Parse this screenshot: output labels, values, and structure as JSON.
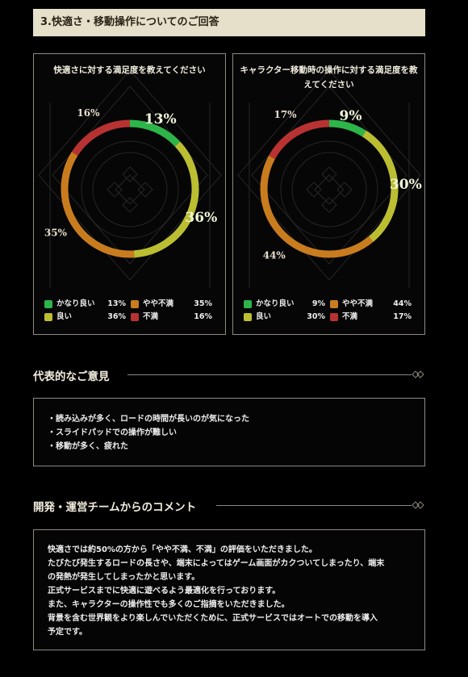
{
  "section_title": "3.快適さ・移動操作についてのご回答",
  "chart_data": [
    {
      "type": "pie",
      "title": "快適さに対する満足度を教えてください",
      "slices": [
        {
          "label": "かなり良い",
          "value": 13,
          "display": "13%",
          "color": "#2db54a"
        },
        {
          "label": "良い",
          "value": 36,
          "display": "36%",
          "color": "#bcbe32"
        },
        {
          "label": "やや不満",
          "value": 35,
          "display": "35%",
          "color": "#c97c1e"
        },
        {
          "label": "不満",
          "value": 16,
          "display": "16%",
          "color": "#b83232"
        }
      ]
    },
    {
      "type": "pie",
      "title": "キャラクター移動時の操作に対する満足度を教えてください",
      "slices": [
        {
          "label": "かなり良い",
          "value": 9,
          "display": "9%",
          "color": "#2db54a"
        },
        {
          "label": "良い",
          "value": 30,
          "display": "30%",
          "color": "#bcbe32"
        },
        {
          "label": "やや不満",
          "value": 44,
          "display": "44%",
          "color": "#c97c1e"
        },
        {
          "label": "不満",
          "value": 17,
          "display": "17%",
          "color": "#b83232"
        }
      ]
    }
  ],
  "opinions": {
    "heading": "代表的なご意見",
    "items": [
      "・読み込みが多く、ロードの時間が長いのが気になった",
      "・スライドパッドでの操作が難しい",
      "・移動が多く、疲れた"
    ]
  },
  "comments": {
    "heading": "開発・運営チームからのコメント",
    "lines": [
      "快適さでは約50%の方から「やや不満、不満」の評価をいただきました。",
      "たびたび発生するロードの長さや、端末によってはゲーム画面がカクついてしまったり、端末",
      "の発熱が発生してしまったかと思います。",
      "正式サービスまでに快適に遊べるよう最適化を行っております。",
      "また、キャラクターの操作性でも多くのご指摘をいただきました。",
      "背景を含む世界観をより楽しんでいただくために、正式サービスではオートでの移動を導入",
      "予定です。"
    ]
  }
}
